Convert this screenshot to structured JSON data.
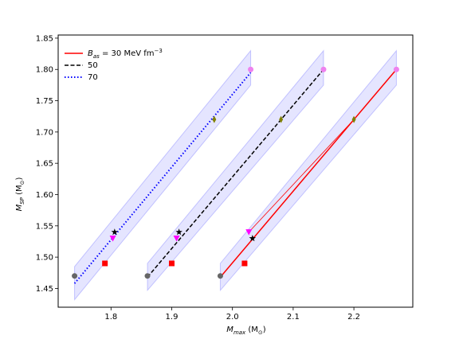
{
  "chart_data": {
    "type": "line",
    "xlabel_base": "M",
    "xlabel_sub": "max",
    "xlabel_unit": " (M",
    "xlabel_unit_sub": "⊙",
    "xlabel_close": ")",
    "ylabel_base": "M",
    "ylabel_sub": "SP",
    "ylabel_unit": " (M",
    "ylabel_unit_sub": "⊙",
    "ylabel_close": ")",
    "xlim": [
      1.713,
      2.297
    ],
    "ylim": [
      1.42,
      1.855
    ],
    "xticks": [
      1.8,
      1.9,
      2.0,
      2.1,
      2.2
    ],
    "xtick_labels": [
      "1.8",
      "1.9",
      "2.0",
      "2.1",
      "2.2"
    ],
    "yticks": [
      1.45,
      1.5,
      1.55,
      1.6,
      1.65,
      1.7,
      1.75,
      1.8,
      1.85
    ],
    "ytick_labels": [
      "1.45",
      "1.50",
      "1.55",
      "1.60",
      "1.65",
      "1.70",
      "1.75",
      "1.80",
      "1.85"
    ],
    "legend_position": "top-left",
    "series": [
      {
        "name_prefix": "B",
        "name_sub": "as",
        "name_suffix": " = 30 MeV fm",
        "name_sup": "−3",
        "color": "#ff0000",
        "style": "solid",
        "x": [
          1.98,
          2.27
        ],
        "y": [
          1.468,
          1.8
        ],
        "band": [
          [
            1.98,
            1.447,
            1.49
          ],
          [
            2.27,
            1.775,
            1.83
          ]
        ]
      },
      {
        "name": "50",
        "color": "#000000",
        "style": "dashed",
        "x": [
          1.86,
          2.15
        ],
        "y": [
          1.468,
          1.8
        ],
        "band": [
          [
            1.86,
            1.447,
            1.49
          ],
          [
            2.15,
            1.775,
            1.83
          ]
        ]
      },
      {
        "name": "70",
        "color": "#0000ff",
        "style": "dotted",
        "x": [
          1.74,
          2.03
        ],
        "y": [
          1.458,
          1.795
        ],
        "band": [
          [
            1.74,
            1.432,
            1.485
          ],
          [
            2.03,
            1.775,
            1.83
          ]
        ]
      }
    ],
    "markers": [
      {
        "shape": "circle",
        "color": "#666666",
        "x": 1.74,
        "y": 1.47
      },
      {
        "shape": "circle",
        "color": "#666666",
        "x": 1.86,
        "y": 1.47
      },
      {
        "shape": "circle",
        "color": "#666666",
        "x": 1.98,
        "y": 1.47
      },
      {
        "shape": "square",
        "color": "#ff0000",
        "x": 1.79,
        "y": 1.49
      },
      {
        "shape": "square",
        "color": "#ff0000",
        "x": 1.9,
        "y": 1.49
      },
      {
        "shape": "square",
        "color": "#ff0000",
        "x": 2.02,
        "y": 1.49
      },
      {
        "shape": "triangle-down",
        "color": "#ff00ff",
        "x": 1.803,
        "y": 1.53
      },
      {
        "shape": "triangle-down",
        "color": "#ff00ff",
        "x": 1.908,
        "y": 1.53
      },
      {
        "shape": "triangle-down",
        "color": "#ff00ff",
        "x": 2.027,
        "y": 1.54
      },
      {
        "shape": "star",
        "color": "#000000",
        "x": 1.806,
        "y": 1.54
      },
      {
        "shape": "star",
        "color": "#000000",
        "x": 1.912,
        "y": 1.54
      },
      {
        "shape": "star",
        "color": "#000000",
        "x": 2.033,
        "y": 1.53
      },
      {
        "shape": "diamond",
        "color": "#808000",
        "x": 1.97,
        "y": 1.72
      },
      {
        "shape": "diamond",
        "color": "#808000",
        "x": 2.08,
        "y": 1.72
      },
      {
        "shape": "diamond",
        "color": "#808000",
        "x": 2.2,
        "y": 1.72
      },
      {
        "shape": "circle",
        "color": "#ee82ee",
        "x": 2.03,
        "y": 1.8
      },
      {
        "shape": "circle",
        "color": "#ee82ee",
        "x": 2.15,
        "y": 1.8
      },
      {
        "shape": "circle",
        "color": "#ee82ee",
        "x": 2.27,
        "y": 1.8
      }
    ],
    "extra_lines": [
      {
        "color": "#ff0000",
        "x": [
          2.027,
          2.2
        ],
        "y": [
          1.54,
          1.72
        ]
      }
    ]
  }
}
